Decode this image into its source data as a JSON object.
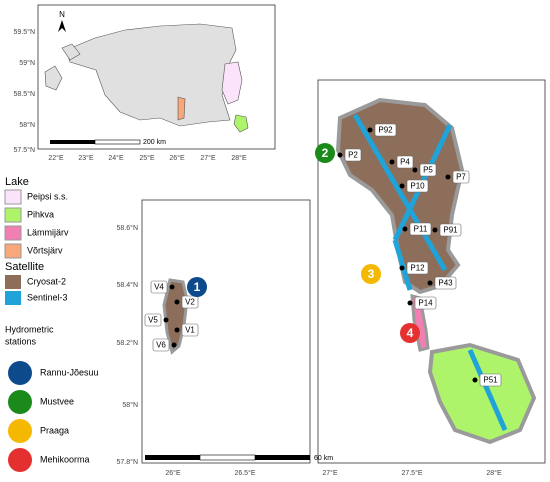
{
  "inset": {
    "y_labels": [
      "59.5°N",
      "59°N",
      "58.5°N",
      "58°N",
      "57.5°N"
    ],
    "x_labels": [
      "22°E",
      "23°E",
      "24°E",
      "25°E",
      "26°E",
      "27°E",
      "28°E"
    ],
    "north": "N",
    "scale_label": "200 km"
  },
  "legend": {
    "lake_title": "Lake",
    "lakes": [
      "Peipsi s.s.",
      "Pihkva",
      "Lämmijärv",
      "Võrtsjärv"
    ],
    "satellite_title": "Satellite",
    "satellites": [
      "Cryosat-2",
      "Sentinel-3"
    ],
    "stations_title": [
      "Hydrometric",
      "stations"
    ],
    "stations": [
      "Rannu-Jõesuu",
      "Mustvee",
      "Praaga",
      "Mehikoorma"
    ]
  },
  "map": {
    "y_labels": [
      "58.6°N",
      "58.4°N",
      "58.2°N",
      "58°N",
      "57.8°N"
    ],
    "x_labels": [
      "26°E",
      "26.5°E",
      "27°E",
      "27.5°E",
      "28°E"
    ],
    "points": [
      "P92",
      "P2",
      "P4",
      "P5",
      "P7",
      "P10",
      "P11",
      "P91",
      "P12",
      "P43",
      "P14",
      "P51",
      "V4",
      "V2",
      "V5",
      "V1",
      "V6"
    ],
    "station_numbers": [
      "1",
      "2",
      "3",
      "4"
    ],
    "scale_label": "60 km"
  }
}
